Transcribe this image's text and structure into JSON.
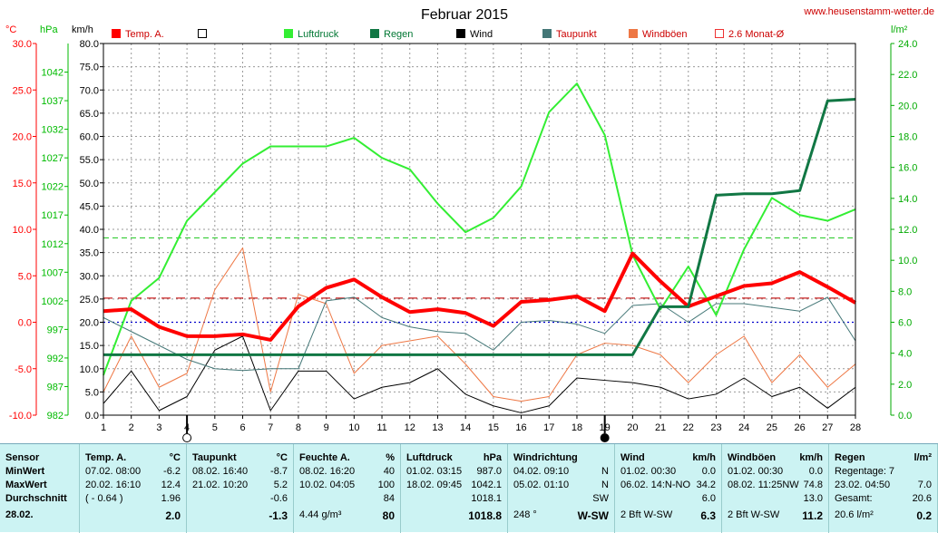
{
  "title": "Februar 2015",
  "site": "www.heusenstamm-wetter.de",
  "units": {
    "temp": "°C",
    "press": "hPa",
    "wind": "km/h",
    "rain": "l/m²"
  },
  "legend": [
    {
      "label": "Temp. A.",
      "color": "#ff0000",
      "style": "filled"
    },
    {
      "label": "",
      "color": "#000000",
      "style": "outline"
    },
    {
      "label": "Luftdruck",
      "color": "#33ee33",
      "style": "filled"
    },
    {
      "label": "Regen",
      "color": "#117744",
      "style": "filled"
    },
    {
      "label": "Wind",
      "color": "#000000",
      "style": "filled"
    },
    {
      "label": "Taupunkt",
      "color": "#447777",
      "style": "filled"
    },
    {
      "label": "Windböen",
      "color": "#ee7744",
      "style": "filled"
    },
    {
      "label": "2.6 Monat-Ø",
      "color": "#ee3333",
      "style": "outline"
    }
  ],
  "chart_data": {
    "type": "line",
    "x": [
      1,
      2,
      3,
      4,
      5,
      6,
      7,
      8,
      9,
      10,
      11,
      12,
      13,
      14,
      15,
      16,
      17,
      18,
      19,
      20,
      21,
      22,
      23,
      24,
      25,
      26,
      27,
      28
    ],
    "x_ticks": [
      "1",
      "2",
      "3",
      "4",
      "5",
      "6",
      "7",
      "8",
      "9",
      "10",
      "11",
      "12",
      "13",
      "14",
      "15",
      "16",
      "17",
      "18",
      "19",
      "20",
      "21",
      "22",
      "23",
      "24",
      "25",
      "26",
      "27",
      "28"
    ],
    "axes": {
      "temp": {
        "min": -10,
        "max": 30,
        "ticks": [
          "30.0",
          "25.0",
          "20.0",
          "15.0",
          "10.0",
          "5.0",
          "0.0",
          "-5.0",
          "-10.0"
        ],
        "color": "#ff0000"
      },
      "press": {
        "min": 982,
        "max": 1047,
        "ticks": [
          "1042",
          "1037",
          "1032",
          "1027",
          "1022",
          "1017",
          "1012",
          "1007",
          "1002",
          "997",
          "992",
          "987",
          "982"
        ],
        "color": "#00bb00"
      },
      "wind": {
        "min": 0,
        "max": 80,
        "ticks": [
          "80.0",
          "75.0",
          "70.0",
          "65.0",
          "60.0",
          "55.0",
          "50.0",
          "45.0",
          "40.0",
          "35.0",
          "30.0",
          "25.0",
          "20.0",
          "15.0",
          "10.0",
          "5.0",
          "0.0"
        ],
        "color": "#000000"
      },
      "rain": {
        "min": 0,
        "max": 24,
        "ticks": [
          "24.0",
          "22.0",
          "20.0",
          "18.0",
          "16.0",
          "14.0",
          "12.0",
          "10.0",
          "8.0",
          "6.0",
          "4.0",
          "2.0",
          "0.0"
        ],
        "color": "#00aa00"
      }
    },
    "reference_lines": [
      {
        "name": "2.6 Monat-Ø",
        "axis": "temp",
        "value": 2.6,
        "color": "#cc2222",
        "dash": "10,6"
      },
      {
        "axis": "temp",
        "value": 0,
        "color": "#0000cc",
        "dash": "2,3"
      },
      {
        "axis": "press",
        "value": 1013,
        "color": "#33cc33",
        "dash": "6,4"
      }
    ],
    "markers": [
      {
        "x": 4,
        "symbol": "moon-new"
      },
      {
        "x": 19,
        "symbol": "moon-full"
      }
    ],
    "series": [
      {
        "name": "Windböen",
        "axis": "wind",
        "color": "#ee7744",
        "width": 1,
        "values": [
          5,
          17,
          6,
          9,
          27,
          36,
          5,
          26,
          24,
          9,
          15,
          16,
          17,
          11,
          4,
          3,
          4,
          13,
          15.5,
          15,
          13,
          7,
          13,
          17,
          7,
          13,
          6,
          11
        ]
      },
      {
        "name": "Wind",
        "axis": "wind",
        "color": "#000000",
        "width": 1,
        "values": [
          2.5,
          9.5,
          1,
          4,
          14,
          17,
          1,
          9.5,
          9.5,
          3.5,
          6,
          7,
          10,
          4.5,
          2,
          0.5,
          2,
          8,
          7.5,
          7,
          6,
          3.5,
          4.5,
          8,
          4,
          6,
          1.5,
          6
        ]
      },
      {
        "name": "Taupunkt",
        "axis": "temp",
        "color": "#447777",
        "width": 1,
        "values": [
          0.5,
          -1,
          -2.5,
          -4,
          -5,
          -5.2,
          -5,
          -5,
          2.3,
          2.7,
          0.5,
          -0.5,
          -1,
          -1.2,
          -3,
          0,
          0.2,
          -0.2,
          -1.2,
          1.8,
          2,
          0,
          2,
          2,
          1.6,
          1.2,
          2.7,
          -2
        ]
      },
      {
        "name": "Luftdruck",
        "axis": "press",
        "color": "#33ee33",
        "width": 2,
        "values": [
          989,
          1002,
          1006,
          1016,
          1021,
          1026,
          1029,
          1029,
          1029,
          1030.5,
          1027,
          1025,
          1019,
          1014,
          1016.5,
          1022,
          1035,
          1040,
          1031,
          1010,
          1000.5,
          1008,
          999.5,
          1011,
          1020,
          1017,
          1016,
          1018
        ]
      },
      {
        "name": "Temp. A.",
        "axis": "temp",
        "color": "#ff0000",
        "width": 4,
        "values": [
          1.2,
          1.4,
          -0.5,
          -1.5,
          -1.5,
          -1.3,
          -1.9,
          1.7,
          3.7,
          4.6,
          2.7,
          1.1,
          1.4,
          1,
          -0.4,
          2.2,
          2.4,
          2.8,
          1.2,
          7.4,
          4.4,
          1.7,
          2.8,
          3.9,
          4.2,
          5.4,
          3.8,
          2.1
        ]
      },
      {
        "name": "Regen",
        "axis": "rain",
        "color": "#117744",
        "width": 3,
        "values": [
          3.9,
          3.9,
          3.9,
          3.9,
          3.9,
          3.9,
          3.9,
          3.9,
          3.9,
          3.9,
          3.9,
          3.9,
          3.9,
          3.9,
          3.9,
          3.9,
          3.9,
          3.9,
          3.9,
          3.9,
          7,
          7,
          14.2,
          14.3,
          14.3,
          14.5,
          20.3,
          20.4
        ]
      }
    ]
  },
  "panel": {
    "date": "28.02.",
    "sensor": {
      "header": "Sensor",
      "rows": [
        "MinWert",
        "MaxWert",
        "Durchschnitt"
      ]
    },
    "temp": {
      "header": "Temp. A.",
      "unit": "°C",
      "rows": [
        [
          "07.02.  08:00",
          "-6.2"
        ],
        [
          "20.02.  16:10",
          "12.4"
        ],
        [
          "( - 0.64 )",
          "1.96"
        ]
      ],
      "current": "2.0"
    },
    "dew": {
      "header": "Taupunkt",
      "unit": "°C",
      "rows": [
        [
          "08.02.  16:40",
          "-8.7"
        ],
        [
          "21.02.  10:20",
          "5.2"
        ],
        [
          "",
          "-0.6"
        ]
      ],
      "current": "-1.3"
    },
    "hum": {
      "header": "Feuchte A.",
      "unit": "%",
      "rows": [
        [
          "08.02.  16:20",
          "40"
        ],
        [
          "10.02.  04:05",
          "100"
        ],
        [
          "",
          "84"
        ]
      ],
      "extra": "4.44 g/m³",
      "current": "80"
    },
    "press": {
      "header": "Luftdruck",
      "unit": "hPa",
      "rows": [
        [
          "01.02.  03:15",
          "987.0"
        ],
        [
          "18.02.  09:45",
          "1042.1"
        ],
        [
          "",
          "1018.1"
        ]
      ],
      "current": "1018.8"
    },
    "dir": {
      "header": "Windrichtung",
      "rows": [
        [
          "04.02.  09:10",
          "N"
        ],
        [
          "05.02.  01:10",
          "N"
        ],
        [
          "",
          "SW"
        ]
      ],
      "extra": "248 °",
      "current": "W-SW"
    },
    "wind": {
      "header": "Wind",
      "unit": "km/h",
      "rows": [
        [
          "01.02.  00:30",
          "0.0"
        ],
        [
          "06.02.  14:N-NO",
          "34.2"
        ],
        [
          "",
          "6.0"
        ]
      ],
      "extra": "2 Bft W-SW",
      "current": "6.3"
    },
    "gust": {
      "header": "Windböen",
      "unit": "km/h",
      "rows": [
        [
          "01.02.  00:30",
          "0.0"
        ],
        [
          "08.02.  11:25NW",
          "74.8"
        ],
        [
          "",
          "13.0"
        ]
      ],
      "extra": "2 Bft W-SW",
      "current": "11.2"
    },
    "rain": {
      "header": "Regen",
      "unit": "l/m²",
      "rows": [
        [
          "Regentage: 7",
          ""
        ],
        [
          "23.02.  04:50",
          "7.0"
        ],
        [
          "Gesamt:",
          "20.6"
        ]
      ],
      "extra": "20.6 l/m²",
      "current": "0.2"
    }
  }
}
